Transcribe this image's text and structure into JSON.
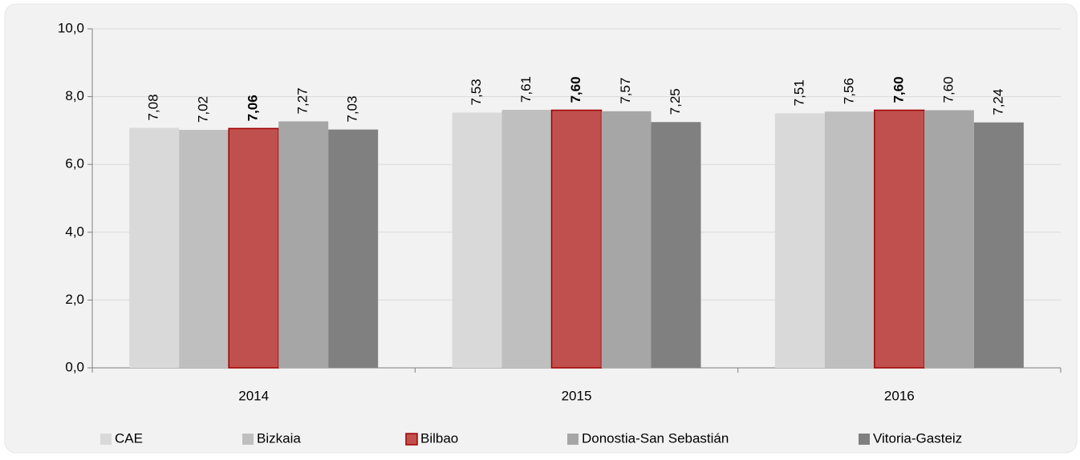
{
  "chart_data": {
    "type": "bar",
    "categories": [
      "2014",
      "2015",
      "2016"
    ],
    "series": [
      {
        "name": "CAE",
        "color": "#d9d9d9",
        "values": [
          7.08,
          7.53,
          7.51
        ],
        "value_labels": [
          "7,08",
          "7,53",
          "7,51"
        ]
      },
      {
        "name": "Bizkaia",
        "color": "#bfbfbf",
        "values": [
          7.02,
          7.61,
          7.56
        ],
        "value_labels": [
          "7,02",
          "7,61",
          "7,56"
        ]
      },
      {
        "name": "Bilbao",
        "color": "#c0504d",
        "border_color": "#a00000",
        "bold": true,
        "values": [
          7.06,
          7.6,
          7.6
        ],
        "value_labels": [
          "7,06",
          "7,60",
          "7,60"
        ]
      },
      {
        "name": "Donostia-San Sebastián",
        "color": "#a6a6a6",
        "values": [
          7.27,
          7.57,
          7.6
        ],
        "value_labels": [
          "7,27",
          "7,57",
          "7,60"
        ]
      },
      {
        "name": "Vitoria-Gasteiz",
        "color": "#808080",
        "values": [
          7.03,
          7.25,
          7.24
        ],
        "value_labels": [
          "7,03",
          "7,25",
          "7,24"
        ]
      }
    ],
    "ylim": [
      0,
      10
    ],
    "yticks": [
      {
        "value": 0,
        "label": "0,0"
      },
      {
        "value": 2,
        "label": "2,0"
      },
      {
        "value": 4,
        "label": "4,0"
      },
      {
        "value": 6,
        "label": "6,0"
      },
      {
        "value": 8,
        "label": "8,0"
      },
      {
        "value": 10,
        "label": "10,0"
      }
    ],
    "grid": true,
    "legend": "bottom"
  }
}
